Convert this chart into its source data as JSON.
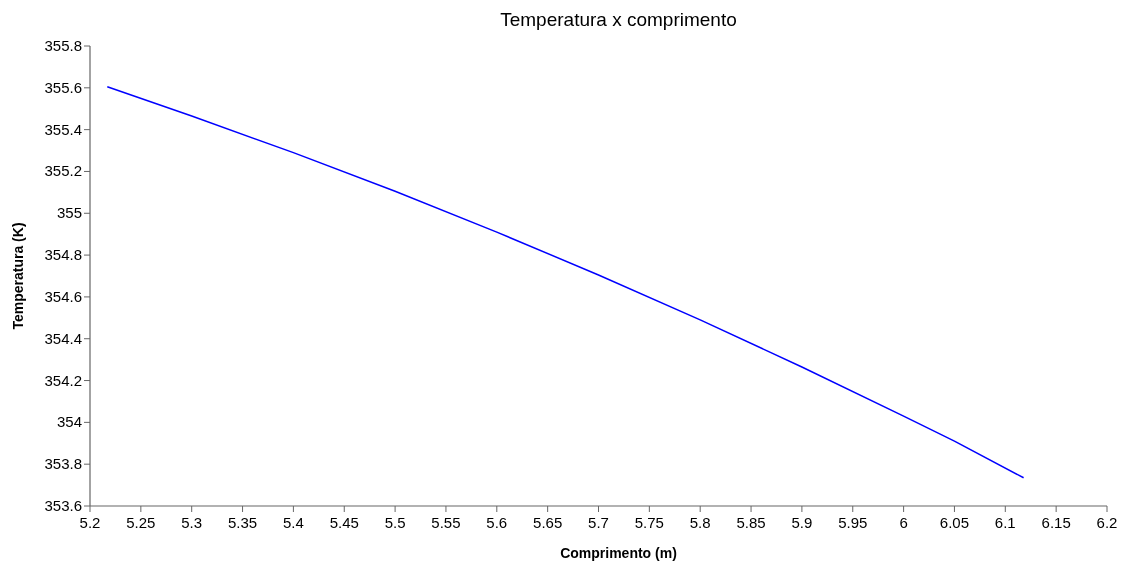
{
  "chart_data": {
    "type": "line",
    "title": "Temperatura x comprimento",
    "xlabel": "Comprimento (m)",
    "ylabel": "Temperatura (K)",
    "x": [
      5.217,
      5.3,
      5.4,
      5.5,
      5.6,
      5.7,
      5.8,
      5.9,
      6.0,
      6.05,
      6.118
    ],
    "series": [
      {
        "color": "#0000ff",
        "values": [
          355.605,
          355.465,
          355.29,
          355.105,
          354.91,
          354.705,
          354.49,
          354.265,
          354.03,
          353.91,
          353.735
        ]
      }
    ],
    "xlim": [
      5.2,
      6.2
    ],
    "xticks": [
      5.2,
      5.25,
      5.3,
      5.35,
      5.4,
      5.45,
      5.5,
      5.55,
      5.6,
      5.65,
      5.7,
      5.75,
      5.8,
      5.85,
      5.9,
      5.95,
      6,
      6.05,
      6.1,
      6.15,
      6.2
    ],
    "ylim": [
      353.6,
      355.8
    ],
    "yticks": [
      353.6,
      353.8,
      354,
      354.2,
      354.4,
      354.6,
      354.8,
      355,
      355.2,
      355.4,
      355.6,
      355.8
    ],
    "grid": false,
    "marker": "none",
    "line_style": "solid"
  }
}
